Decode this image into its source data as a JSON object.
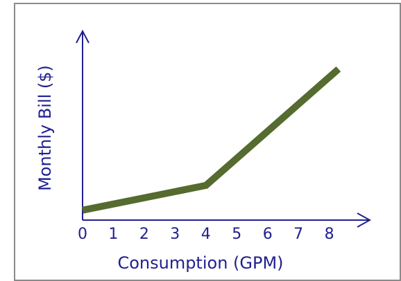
{
  "chart_data": {
    "type": "line",
    "title": "",
    "xlabel": "Consumption (GPM)",
    "ylabel": "Monthly Bill ($)",
    "x_tick_labels": [
      "0",
      "1",
      "2",
      "3",
      "4",
      "5",
      "6",
      "7",
      "8"
    ],
    "y_tick_labels": [],
    "grid": false,
    "legend": "none",
    "series": [
      {
        "color": "#556b2f",
        "x": [
          0,
          4,
          8.3
        ],
        "y": [
          0,
          1,
          5.7
        ]
      }
    ],
    "xlim": [
      0,
      9.0
    ],
    "ylim": [
      -0.4,
      7.2
    ],
    "colors": {
      "axis": "#1f1f8f",
      "line": "#556b2f",
      "frame": "#8a8a8a"
    }
  }
}
